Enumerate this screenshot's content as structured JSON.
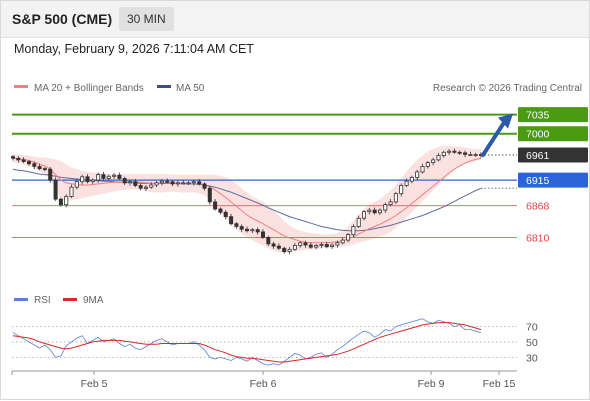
{
  "header": {
    "symbol": "S&P 500 (CME)",
    "interval": "30 MIN",
    "datetime": "Monday, February 9, 2026 7:11:04 AM CET"
  },
  "legend": {
    "ma20_label": "MA 20 + Bollinger Bands",
    "ma50_label": "MA 50",
    "credit": "Research © 2026 Trading Central"
  },
  "rsi_legend": {
    "rsi_label": "RSI",
    "ma_label": "9MA"
  },
  "colors": {
    "resistance": "#4a9a12",
    "support": "#d84646",
    "pivot": "#2b63d9",
    "price_tag": "#333333",
    "arrow": "#2b5aa8",
    "bollinger_fill": "#fcdcdc",
    "ma20": "#f08080",
    "ma50": "#5b6ca5",
    "rsi": "#5b7fd6",
    "rsi_ma": "#d42a2a"
  },
  "chart_data": [
    {
      "type": "candlestick",
      "title": "S&P 500 (CME)",
      "x_ticks": [
        "Feb 5",
        "Feb 6",
        "Feb 9",
        "Feb 15"
      ],
      "y_range": [
        6730,
        7060
      ],
      "last_price": 6961,
      "levels": [
        {
          "label": "7035",
          "value": 7035,
          "kind": "resistance"
        },
        {
          "label": "7000",
          "value": 7000,
          "kind": "resistance"
        },
        {
          "label": "6961",
          "value": 6961,
          "kind": "last"
        },
        {
          "label": "6915",
          "value": 6915,
          "kind": "pivot"
        },
        {
          "label": "6868",
          "value": 6868,
          "kind": "support"
        },
        {
          "label": "6810",
          "value": 6810,
          "kind": "support"
        }
      ],
      "close": [
        6955,
        6952,
        6949,
        6945,
        6940,
        6936,
        6935,
        6915,
        6880,
        6870,
        6885,
        6902,
        6912,
        6921,
        6912,
        6915,
        6925,
        6918,
        6922,
        6924,
        6918,
        6910,
        6912,
        6905,
        6900,
        6902,
        6906,
        6910,
        6913,
        6912,
        6908,
        6910,
        6910,
        6910,
        6912,
        6908,
        6900,
        6875,
        6862,
        6856,
        6848,
        6835,
        6830,
        6825,
        6822,
        6824,
        6820,
        6810,
        6798,
        6794,
        6790,
        6784,
        6788,
        6795,
        6800,
        6796,
        6792,
        6795,
        6797,
        6793,
        6796,
        6800,
        6805,
        6815,
        6830,
        6845,
        6857,
        6860,
        6855,
        6860,
        6870,
        6875,
        6890,
        6905,
        6913,
        6920,
        6930,
        6940,
        6947,
        6952,
        6960,
        6966,
        6968,
        6966,
        6965,
        6962,
        6962,
        6962,
        6961
      ],
      "ma20": [
        6955,
        6954,
        6953,
        6951,
        6948,
        6944,
        6941,
        6935,
        6925,
        6915,
        6910,
        6908,
        6907,
        6906,
        6906,
        6907,
        6908,
        6909,
        6910,
        6911,
        6911,
        6912,
        6912,
        6912,
        6911,
        6910,
        6909,
        6909,
        6910,
        6910,
        6910,
        6909,
        6909,
        6909,
        6909,
        6908,
        6906,
        6902,
        6897,
        6890,
        6883,
        6875,
        6867,
        6859,
        6851,
        6845,
        6840,
        6835,
        6829,
        6824,
        6818,
        6813,
        6809,
        6806,
        6803,
        6801,
        6800,
        6800,
        6800,
        6800,
        6801,
        6802,
        6804,
        6807,
        6811,
        6816,
        6821,
        6826,
        6830,
        6834,
        6839,
        6844,
        6850,
        6857,
        6864,
        6872,
        6880,
        6888,
        6896,
        6904,
        6912,
        6920,
        6928,
        6935,
        6941,
        6946,
        6950,
        6953,
        6955
      ],
      "bb_upper": [
        6962,
        6962,
        6961,
        6960,
        6958,
        6957,
        6956,
        6955,
        6953,
        6950,
        6944,
        6938,
        6935,
        6932,
        6930,
        6929,
        6928,
        6927,
        6926,
        6926,
        6926,
        6926,
        6926,
        6926,
        6926,
        6926,
        6926,
        6926,
        6926,
        6926,
        6925,
        6925,
        6925,
        6925,
        6925,
        6925,
        6925,
        6925,
        6925,
        6923,
        6920,
        6915,
        6908,
        6900,
        6892,
        6885,
        6880,
        6875,
        6868,
        6860,
        6850,
        6840,
        6832,
        6826,
        6822,
        6820,
        6818,
        6817,
        6816,
        6815,
        6816,
        6818,
        6822,
        6830,
        6840,
        6852,
        6862,
        6870,
        6875,
        6880,
        6888,
        6896,
        6906,
        6918,
        6930,
        6942,
        6952,
        6960,
        6968,
        6972,
        6976,
        6978,
        6978,
        6977,
        6976,
        6975,
        6973,
        6972,
        6971
      ],
      "bb_lower": [
        6948,
        6946,
        6944,
        6941,
        6937,
        6932,
        6925,
        6915,
        6897,
        6880,
        6876,
        6878,
        6880,
        6882,
        6884,
        6886,
        6888,
        6890,
        6892,
        6894,
        6896,
        6897,
        6898,
        6898,
        6897,
        6895,
        6893,
        6892,
        6892,
        6893,
        6894,
        6893,
        6892,
        6892,
        6893,
        6891,
        6887,
        6879,
        6869,
        6857,
        6845,
        6834,
        6825,
        6817,
        6810,
        6805,
        6800,
        6795,
        6790,
        6786,
        6783,
        6782,
        6782,
        6784,
        6786,
        6787,
        6788,
        6789,
        6790,
        6791,
        6791,
        6792,
        6793,
        6795,
        6797,
        6800,
        6803,
        6805,
        6808,
        6811,
        6815,
        6820,
        6828,
        6836,
        6846,
        6856,
        6866,
        6876,
        6886,
        6896,
        6906,
        6916,
        6926,
        6934,
        6940,
        6945,
        6948,
        6950,
        6952
      ],
      "ma50": [
        6935,
        6933,
        6932,
        6930,
        6928,
        6926,
        6925,
        6924,
        6922,
        6920,
        6919,
        6918,
        6917,
        6916,
        6915,
        6914,
        6914,
        6913,
        6913,
        6912,
        6911,
        6911,
        6910,
        6910,
        6909,
        6909,
        6909,
        6909,
        6909,
        6909,
        6909,
        6909,
        6908,
        6908,
        6908,
        6907,
        6906,
        6904,
        6902,
        6899,
        6896,
        6893,
        6889,
        6885,
        6881,
        6877,
        6873,
        6869,
        6864,
        6860,
        6856,
        6852,
        6848,
        6845,
        6842,
        6839,
        6836,
        6833,
        6830,
        6828,
        6826,
        6824,
        6823,
        6822,
        6822,
        6822,
        6823,
        6824,
        6826,
        6828,
        6830,
        6832,
        6835,
        6838,
        6841,
        6844,
        6847,
        6850,
        6854,
        6858,
        6862,
        6866,
        6871,
        6876,
        6881,
        6886,
        6891,
        6896,
        6900
      ],
      "forecast_target": 7035
    },
    {
      "type": "line",
      "title": "RSI",
      "y_ticks": [
        70,
        50,
        30
      ],
      "y_range": [
        15,
        90
      ],
      "series": [
        {
          "name": "RSI",
          "values": [
            62,
            58,
            54,
            50,
            46,
            42,
            46,
            40,
            30,
            32,
            45,
            50,
            55,
            58,
            48,
            52,
            56,
            50,
            52,
            54,
            48,
            44,
            47,
            42,
            40,
            44,
            48,
            52,
            54,
            50,
            46,
            48,
            48,
            48,
            50,
            46,
            40,
            30,
            28,
            30,
            28,
            26,
            30,
            28,
            25,
            30,
            26,
            22,
            20,
            22,
            20,
            25,
            30,
            35,
            33,
            28,
            30,
            34,
            36,
            30,
            34,
            40,
            44,
            50,
            55,
            60,
            64,
            62,
            56,
            60,
            66,
            64,
            70,
            72,
            74,
            76,
            78,
            80,
            76,
            74,
            78,
            76,
            74,
            70,
            72,
            66,
            66,
            64,
            62
          ]
        },
        {
          "name": "9MA",
          "values": [
            58,
            57,
            56,
            55,
            53,
            50,
            48,
            46,
            44,
            42,
            41,
            42,
            44,
            46,
            48,
            50,
            51,
            52,
            52,
            52,
            52,
            51,
            50,
            49,
            48,
            47,
            47,
            47,
            48,
            48,
            48,
            48,
            48,
            48,
            48,
            48,
            46,
            43,
            40,
            38,
            36,
            33,
            31,
            30,
            29,
            29,
            28,
            27,
            26,
            25,
            24,
            24,
            25,
            26,
            27,
            28,
            29,
            30,
            31,
            32,
            33,
            34,
            36,
            38,
            41,
            44,
            47,
            50,
            53,
            56,
            58,
            60,
            62,
            64,
            66,
            68,
            70,
            72,
            73,
            74,
            75,
            75,
            75,
            74,
            73,
            72,
            70,
            68,
            66
          ]
        }
      ]
    }
  ]
}
